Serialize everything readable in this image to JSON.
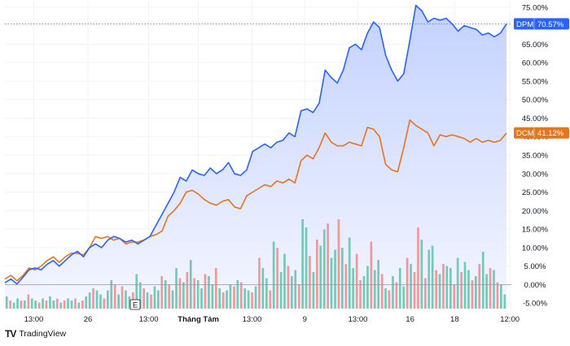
{
  "chart_data": {
    "type": "line",
    "y_unit": "%",
    "y_ticks": [
      "75.00%",
      "70.00%",
      "65.00%",
      "60.00%",
      "55.00%",
      "50.00%",
      "45.00%",
      "40.00%",
      "35.00%",
      "30.00%",
      "25.00%",
      "20.00%",
      "15.00%",
      "10.00%",
      "5.00%",
      "0.00%",
      "-5.00%"
    ],
    "ylim": [
      -6.5,
      76.5
    ],
    "x_ticks": [
      {
        "label": "13:00",
        "pos": 0.057,
        "bold": false
      },
      {
        "label": "26",
        "pos": 0.164,
        "bold": false
      },
      {
        "label": "13:00",
        "pos": 0.284,
        "bold": false
      },
      {
        "label": "Tháng Tám",
        "pos": 0.382,
        "bold": true
      },
      {
        "label": "13:00",
        "pos": 0.488,
        "bold": false
      },
      {
        "label": "9",
        "pos": 0.592,
        "bold": false
      },
      {
        "label": "13:00",
        "pos": 0.697,
        "bold": false
      },
      {
        "label": "16",
        "pos": 0.8,
        "bold": false
      },
      {
        "label": "18",
        "pos": 0.888,
        "bold": false
      },
      {
        "label": "12:00",
        "pos": 0.997,
        "bold": false
      }
    ],
    "series": [
      {
        "name": "DPM",
        "color": "#2962ff",
        "last_value_label": "70.57%",
        "values": [
          0.5,
          1.5,
          0.2,
          2.0,
          4.0,
          4.5,
          4.0,
          5.5,
          6.5,
          5.0,
          6.5,
          8.0,
          9.0,
          7.5,
          10.0,
          11.0,
          10.0,
          12.0,
          13.0,
          12.5,
          11.5,
          12.0,
          11.0,
          12.0,
          13.0,
          16.0,
          19.0,
          22.0,
          25.0,
          29.0,
          28.0,
          31.0,
          30.0,
          29.5,
          31.5,
          30.0,
          31.0,
          33.0,
          30.0,
          29.5,
          31.0,
          36.0,
          37.0,
          38.0,
          37.0,
          38.5,
          39.0,
          41.0,
          40.0,
          47.0,
          47.5,
          46.5,
          49.0,
          58.0,
          56.0,
          54.5,
          58.0,
          64.0,
          65.0,
          63.5,
          68.0,
          71.0,
          69.5,
          62.0,
          58.0,
          55.0,
          57.0,
          66.0,
          75.5,
          74.0,
          71.0,
          72.0,
          71.5,
          72.0,
          70.5,
          68.5,
          70.0,
          69.5,
          69.0,
          67.5,
          68.0,
          67.0,
          68.0,
          70.5
        ]
      },
      {
        "name": "DCM",
        "color": "#e8741c",
        "last_value_label": "41.12%",
        "values": [
          1.5,
          2.5,
          1.0,
          2.5,
          4.5,
          4.0,
          5.0,
          6.5,
          7.5,
          6.0,
          7.5,
          8.5,
          8.5,
          8.0,
          10.0,
          13.0,
          12.5,
          13.0,
          12.0,
          12.5,
          11.0,
          11.5,
          11.5,
          12.0,
          13.0,
          13.5,
          14.5,
          18.5,
          20.0,
          22.0,
          25.0,
          25.5,
          24.5,
          23.0,
          22.0,
          21.5,
          22.5,
          23.0,
          21.0,
          20.5,
          24.0,
          25.0,
          26.0,
          27.0,
          26.5,
          28.0,
          27.5,
          28.5,
          27.5,
          33.5,
          35.0,
          34.0,
          37.0,
          41.0,
          38.5,
          37.5,
          37.5,
          38.5,
          38.0,
          37.5,
          42.5,
          42.0,
          40.0,
          32.5,
          31.0,
          30.5,
          37.0,
          44.5,
          43.0,
          42.0,
          41.0,
          37.5,
          40.5,
          40.0,
          40.5,
          40.0,
          39.5,
          38.5,
          39.5,
          38.5,
          39.0,
          38.5,
          39.0,
          41.0
        ]
      }
    ],
    "volume": [
      6,
      4,
      3,
      5,
      4,
      4,
      7,
      5,
      4,
      3,
      5,
      4,
      6,
      4,
      5,
      3,
      4,
      5,
      4,
      5,
      3,
      4,
      6,
      8,
      10,
      9,
      7,
      5,
      9,
      14,
      12,
      7,
      11,
      9,
      6,
      8,
      17,
      13,
      10,
      8,
      7,
      11,
      9,
      16,
      14,
      12,
      9,
      20,
      15,
      13,
      18,
      24,
      15,
      14,
      10,
      17,
      16,
      12,
      20,
      10,
      8,
      9,
      12,
      11,
      14,
      13,
      10,
      9,
      8,
      11,
      25,
      20,
      15,
      9,
      33,
      30,
      18,
      27,
      21,
      16,
      19,
      12,
      44,
      40,
      26,
      18,
      34,
      31,
      39,
      42,
      25,
      29,
      44,
      30,
      22,
      35,
      20,
      27,
      14,
      16,
      21,
      33,
      19,
      24,
      17,
      10,
      9,
      16,
      13,
      20,
      11,
      25,
      22,
      18,
      40,
      34,
      15,
      29,
      31,
      19,
      17,
      22,
      21,
      20,
      12,
      25,
      18,
      23,
      19,
      14,
      16,
      22,
      28,
      17,
      20,
      19,
      13,
      12,
      7
    ],
    "volume_colors": [
      "g",
      "r",
      "g",
      "g",
      "r",
      "g",
      "r",
      "g",
      "g",
      "r",
      "g",
      "r",
      "g",
      "g",
      "r",
      "g",
      "r",
      "g",
      "g",
      "r",
      "g",
      "r",
      "g",
      "g",
      "r",
      "g",
      "g",
      "r",
      "g",
      "g",
      "r",
      "g",
      "r",
      "g",
      "g",
      "r",
      "g",
      "g",
      "r",
      "g",
      "r",
      "g",
      "g",
      "r",
      "g",
      "r",
      "g",
      "g",
      "r",
      "g",
      "r",
      "g",
      "r",
      "g",
      "g",
      "r",
      "g",
      "g",
      "r",
      "g",
      "r",
      "g",
      "g",
      "r",
      "g",
      "r",
      "g",
      "g",
      "r",
      "g",
      "r",
      "g",
      "g",
      "r",
      "g",
      "r",
      "g",
      "g",
      "r",
      "g",
      "g",
      "r",
      "g",
      "g",
      "r",
      "g",
      "r",
      "g",
      "g",
      "r",
      "g",
      "g",
      "r",
      "g",
      "r",
      "g",
      "g",
      "r",
      "r",
      "g",
      "g",
      "r",
      "g",
      "g",
      "r",
      "g",
      "r",
      "g",
      "r",
      "g",
      "g",
      "r",
      "g",
      "r",
      "r",
      "g",
      "r",
      "g",
      "g",
      "r",
      "g",
      "r",
      "g",
      "g",
      "r",
      "g",
      "r",
      "g",
      "g",
      "r",
      "g",
      "r",
      "g",
      "g",
      "r",
      "g",
      "r",
      "g",
      "g"
    ],
    "colors": {
      "up_volume": "#76c9b6",
      "down_volume": "#ef9a9a",
      "area_top": "#c3d1ff",
      "area_bottom": "#f4f6ff",
      "zero_line": "#9598a1",
      "dotted_line": "#5d86ff"
    },
    "event_marker": "E",
    "grid": true,
    "legend": "price-tags-right"
  },
  "branding": {
    "logo_mark": "TV",
    "logo_text": "TradingView"
  }
}
